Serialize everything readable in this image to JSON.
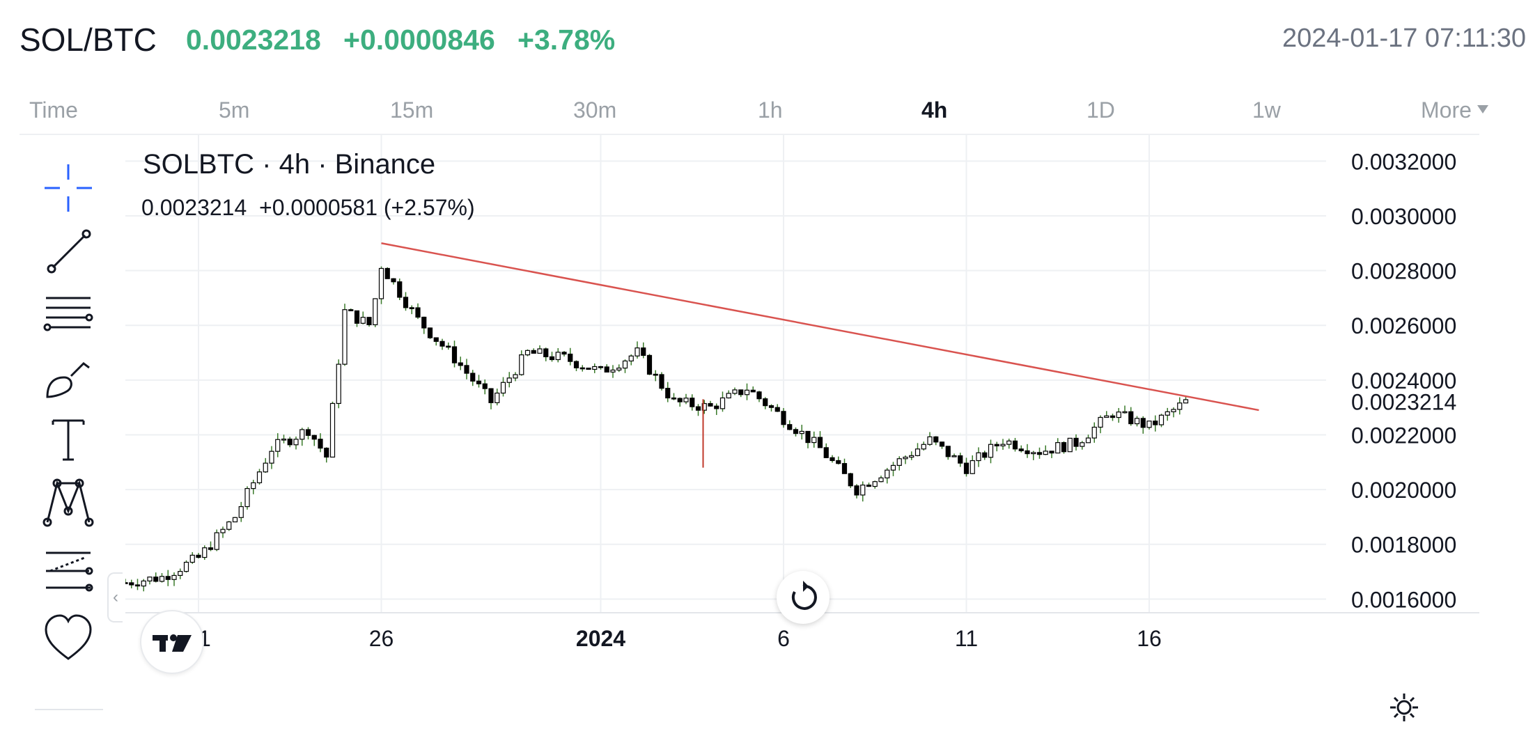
{
  "header": {
    "pair": "SOL/BTC",
    "price": "0.0023218",
    "change": "+0.0000846",
    "change_pct": "+3.78%",
    "datetime": "2024-01-17 07:11:30",
    "accent_color": "#3dae7f"
  },
  "intervals": {
    "items": [
      "Time",
      "5m",
      "15m",
      "30m",
      "1h",
      "4h",
      "1D",
      "1w",
      "More"
    ],
    "active": "4h"
  },
  "toolbar": {
    "tools": [
      "crosshair-icon",
      "trend-line-icon",
      "fib-retracement-icon",
      "brush-icon",
      "text-icon",
      "pattern-icon",
      "measure-icon",
      "favorite-heart-icon"
    ]
  },
  "legend": {
    "title": "SOLBTC · 4h · Binance",
    "values": "0.0023214  +0.0000581 (+2.57%)"
  },
  "chart_data": {
    "type": "candlestick",
    "symbol": "SOLBTC",
    "interval": "4h",
    "exchange": "Binance",
    "last_price_label": "0.0023214",
    "ylim": [
      0.00155,
      0.0033
    ],
    "y_ticks": [
      "0.0016000",
      "0.0018000",
      "0.0020000",
      "0.0022000",
      "0.0024000",
      "0.0026000",
      "0.0028000",
      "0.0030000",
      "0.0032000"
    ],
    "x_ticks": [
      "21",
      "26",
      "2024",
      "6",
      "11",
      "16"
    ],
    "trendline": {
      "color": "#d9534f",
      "from": {
        "x": "Dec 26",
        "y": 0.0029
      },
      "to": {
        "x": "Jan 19",
        "y": 0.00229
      }
    },
    "approx_close_path": [
      {
        "x": "Dec 19",
        "y": 0.00166
      },
      {
        "x": "Dec 20",
        "y": 0.00168
      },
      {
        "x": "Dec 21",
        "y": 0.00175
      },
      {
        "x": "Dec 22",
        "y": 0.0019
      },
      {
        "x": "Dec 23",
        "y": 0.00215
      },
      {
        "x": "Dec 24",
        "y": 0.00222
      },
      {
        "x": "Dec 24.5",
        "y": 0.00212
      },
      {
        "x": "Dec 25",
        "y": 0.00265
      },
      {
        "x": "Dec 25.7",
        "y": 0.0026
      },
      {
        "x": "Dec 26",
        "y": 0.00282
      },
      {
        "x": "Dec 27",
        "y": 0.00262
      },
      {
        "x": "Dec 28",
        "y": 0.00248
      },
      {
        "x": "Dec 29",
        "y": 0.00232
      },
      {
        "x": "Dec 30",
        "y": 0.0025
      },
      {
        "x": "Dec 31",
        "y": 0.00248
      },
      {
        "x": "Jan 1",
        "y": 0.00243
      },
      {
        "x": "Jan 2",
        "y": 0.0025
      },
      {
        "x": "Jan 3",
        "y": 0.00232
      },
      {
        "x": "Jan 4",
        "y": 0.0023
      },
      {
        "x": "Jan 5",
        "y": 0.00237
      },
      {
        "x": "Jan 6",
        "y": 0.00226
      },
      {
        "x": "Jan 7",
        "y": 0.00215
      },
      {
        "x": "Jan 8",
        "y": 0.002
      },
      {
        "x": "Jan 9",
        "y": 0.00209
      },
      {
        "x": "Jan 10",
        "y": 0.00218
      },
      {
        "x": "Jan 11",
        "y": 0.00208
      },
      {
        "x": "Jan 12",
        "y": 0.00218
      },
      {
        "x": "Jan 13",
        "y": 0.00214
      },
      {
        "x": "Jan 14",
        "y": 0.00217
      },
      {
        "x": "Jan 15",
        "y": 0.00228
      },
      {
        "x": "Jan 16",
        "y": 0.00223
      },
      {
        "x": "Jan 17",
        "y": 0.00232
      }
    ],
    "grid": true,
    "up_color": "#ffffff",
    "down_color": "#000000"
  }
}
